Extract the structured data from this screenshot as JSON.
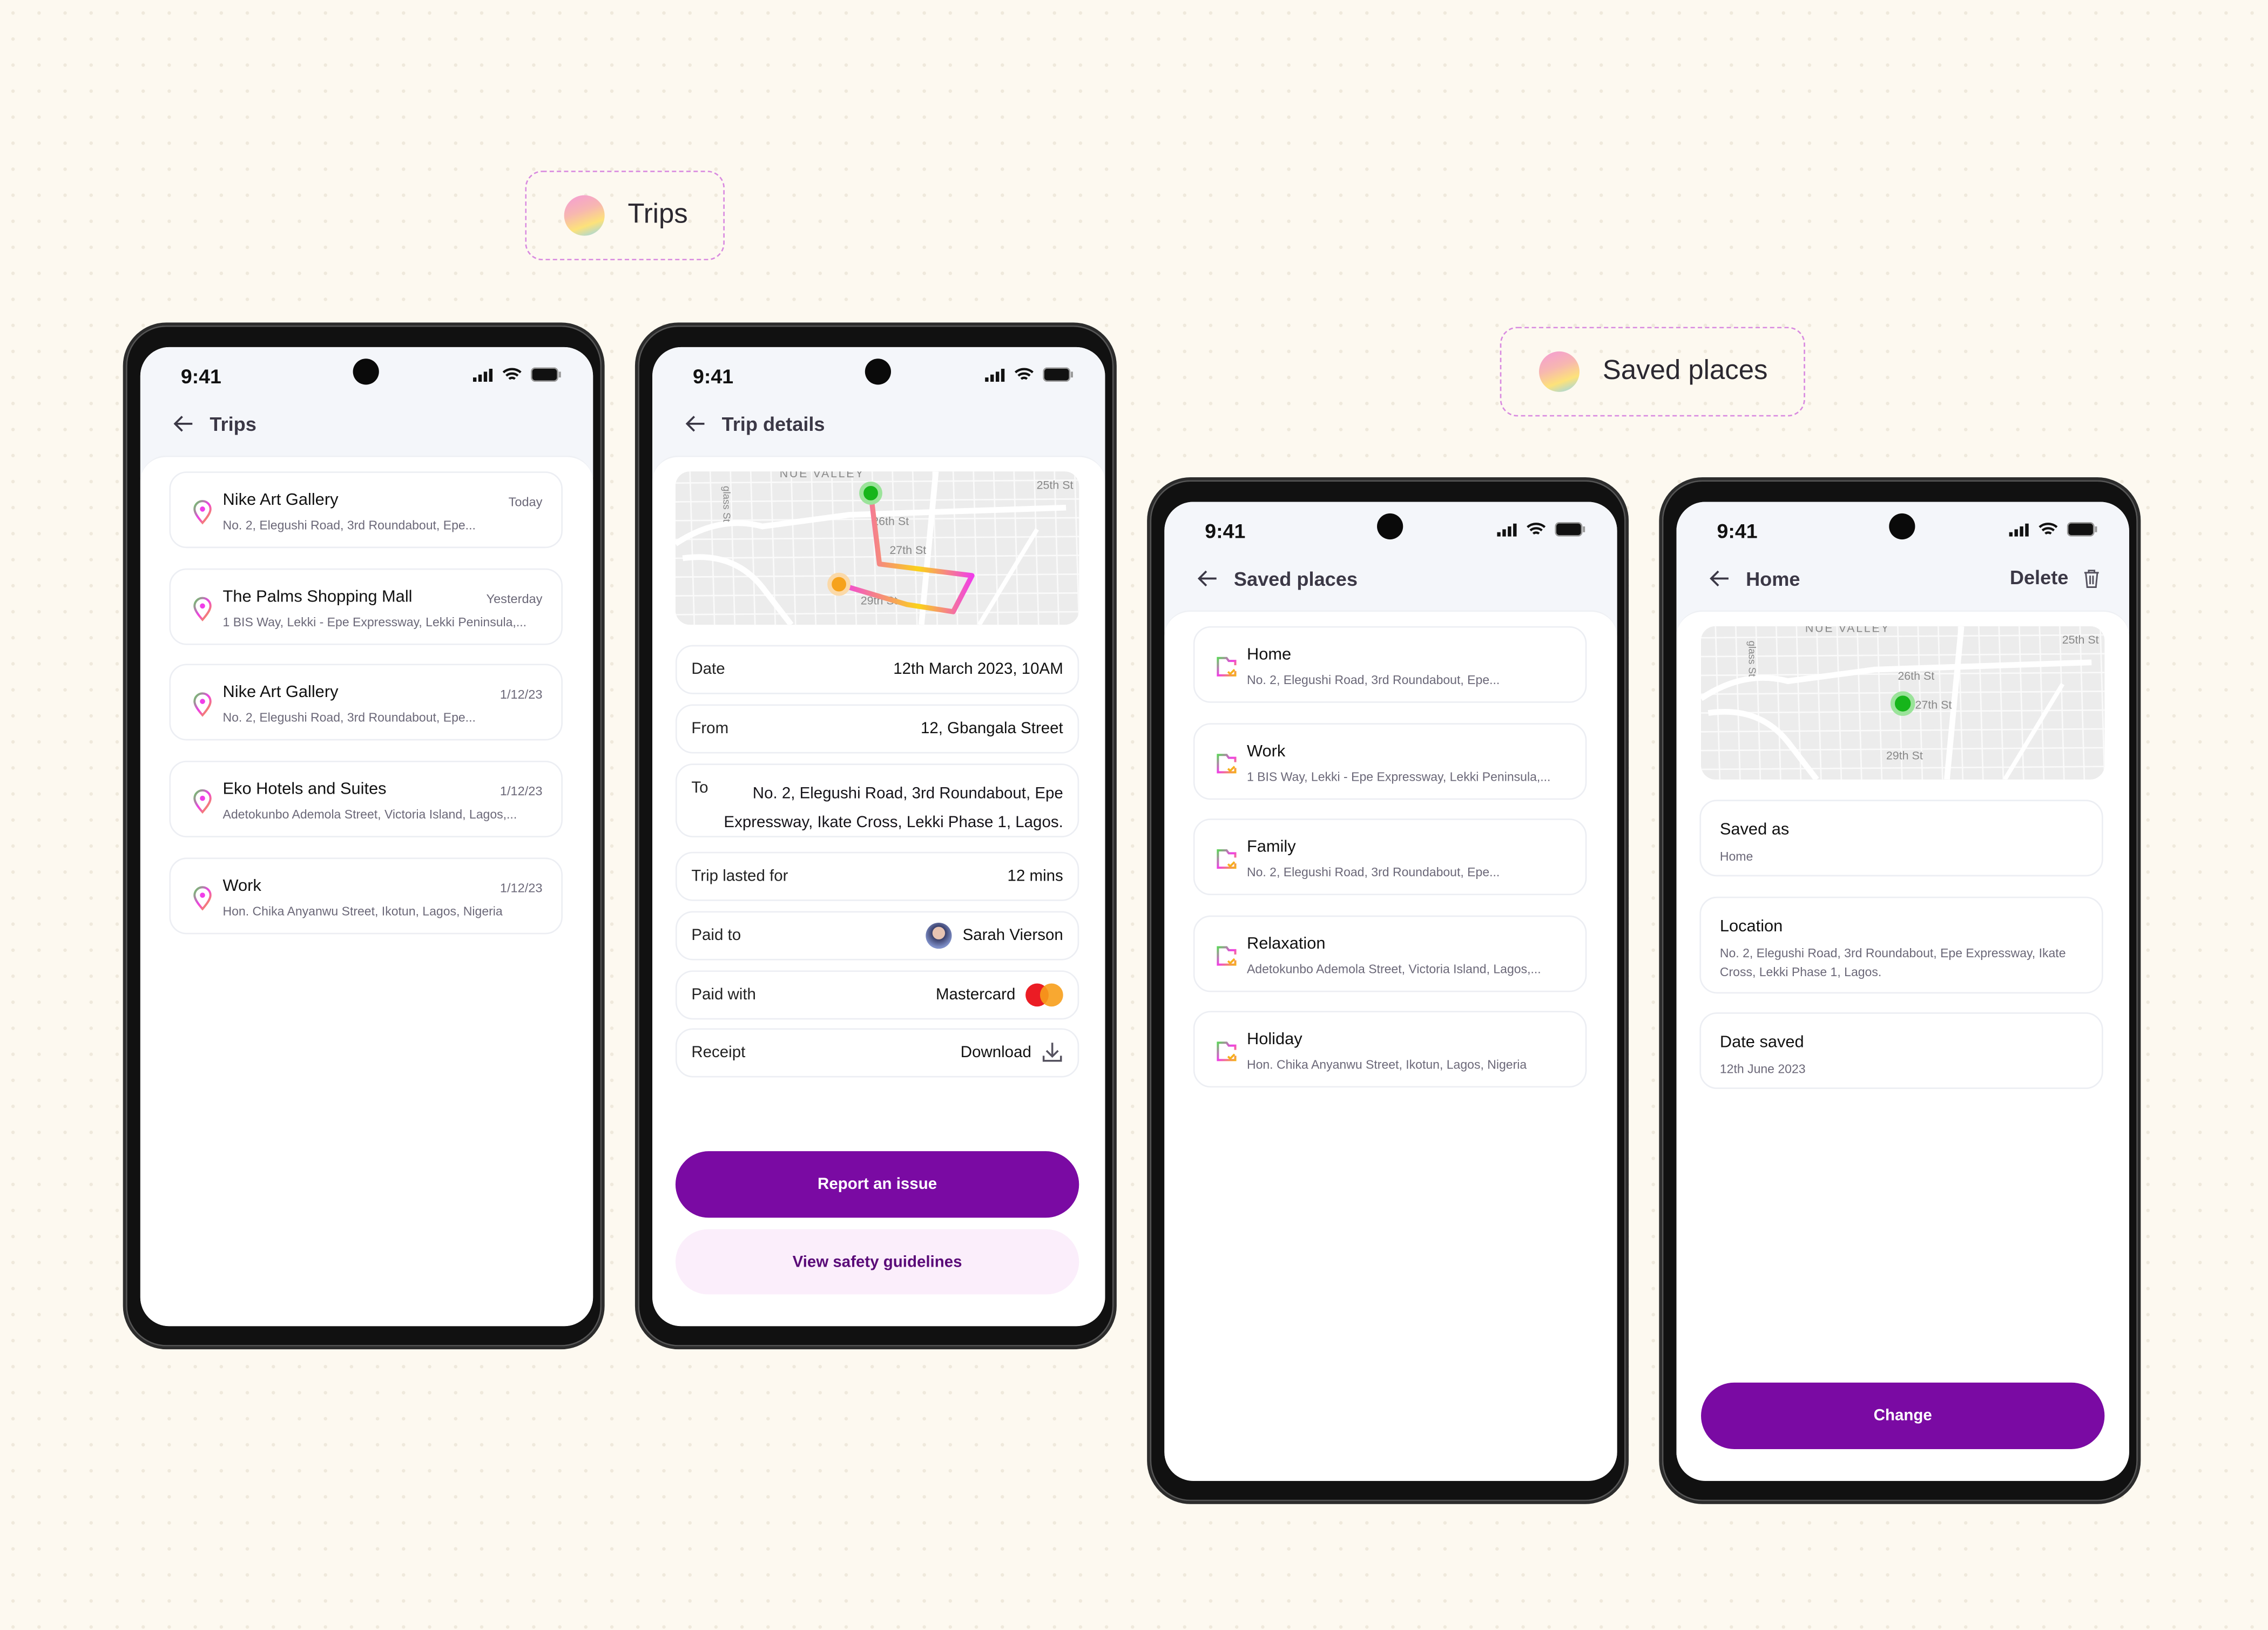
{
  "labels": {
    "trips": "Trips",
    "saved_places": "Saved places"
  },
  "status_bar": {
    "time": "9:41"
  },
  "colors": {
    "primary": "#7a0aa3",
    "primary_soft": "#fbeefb",
    "background": "#fdf9f0",
    "header_bg": "#f4f6fa",
    "route_start": "#16b51a",
    "route_end": "#f6a21c"
  },
  "trips_screen": {
    "title": "Trips",
    "items": [
      {
        "name": "Nike Art Gallery",
        "address": "No. 2, Elegushi Road, 3rd Roundabout, Epe...",
        "date": "Today"
      },
      {
        "name": "The Palms Shopping Mall",
        "address": "1 BIS Way, Lekki - Epe Expressway, Lekki Peninsula,...",
        "date": "Yesterday"
      },
      {
        "name": "Nike Art Gallery",
        "address": "No. 2, Elegushi Road, 3rd Roundabout, Epe...",
        "date": "1/12/23"
      },
      {
        "name": "Eko Hotels and Suites",
        "address": "Adetokunbo Ademola Street, Victoria Island, Lagos,...",
        "date": "1/12/23"
      },
      {
        "name": "Work",
        "address": "Hon. Chika Anyanwu Street, Ikotun, Lagos, Nigeria",
        "date": "1/12/23"
      }
    ]
  },
  "map_labels": {
    "area": "NUE VALLEY",
    "side": "glass St",
    "st25": "25th St",
    "st26": "26th St",
    "st27": "27th St",
    "st29": "29th St"
  },
  "trip_details": {
    "title": "Trip details",
    "date": {
      "label": "Date",
      "value": "12th March 2023,  10AM"
    },
    "from": {
      "label": "From",
      "value": "12, Gbangala Street"
    },
    "to": {
      "label": "To",
      "value": "No. 2, Elegushi Road, 3rd Roundabout, Epe Expressway, Ikate Cross, Lekki Phase 1, Lagos."
    },
    "duration": {
      "label": "Trip lasted for",
      "value": "12 mins"
    },
    "paid_to": {
      "label": "Paid to",
      "value": "Sarah Vierson"
    },
    "paid_with": {
      "label": "Paid with",
      "value": "Mastercard"
    },
    "receipt": {
      "label": "Receipt",
      "value": "Download"
    },
    "report_button": "Report an issue",
    "safety_button": "View safety guidelines"
  },
  "saved_screen": {
    "title": "Saved places",
    "items": [
      {
        "name": "Home",
        "address": "No. 2, Elegushi Road, 3rd Roundabout, Epe..."
      },
      {
        "name": "Work",
        "address": "1 BIS Way, Lekki - Epe Expressway, Lekki Peninsula,..."
      },
      {
        "name": "Family",
        "address": "No. 2, Elegushi Road, 3rd Roundabout, Epe..."
      },
      {
        "name": "Relaxation",
        "address": "Adetokunbo Ademola Street, Victoria Island, Lagos,..."
      },
      {
        "name": "Holiday",
        "address": "Hon. Chika Anyanwu Street, Ikotun, Lagos, Nigeria"
      }
    ]
  },
  "place_detail": {
    "title": "Home",
    "delete_label": "Delete",
    "saved_as": {
      "label": "Saved as",
      "value": "Home"
    },
    "location": {
      "label": "Location",
      "value": "No. 2, Elegushi Road, 3rd Roundabout, Epe Expressway, Ikate Cross, Lekki Phase 1, Lagos."
    },
    "date_saved": {
      "label": "Date saved",
      "value": "12th June 2023"
    },
    "change_button": "Change"
  }
}
